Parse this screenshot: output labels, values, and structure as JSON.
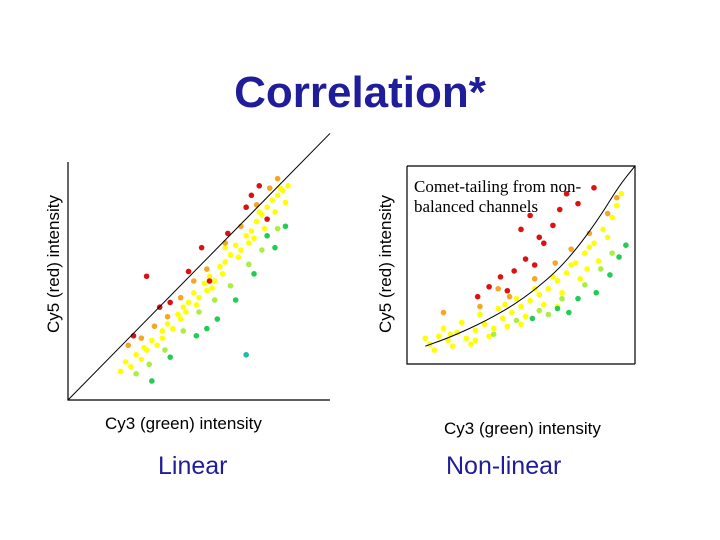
{
  "title": "Correlation*",
  "colors": {
    "title": "#1f1d99",
    "axis": "#000000"
  },
  "chart_data": [
    {
      "type": "scatter",
      "panel": "left",
      "caption": "Linear",
      "xlabel": "Cy3 (green) intensity",
      "ylabel": "Cy5 (red) intensity",
      "xlim": [
        0,
        10
      ],
      "ylim": [
        0,
        10
      ],
      "fit": {
        "kind": "linear",
        "points": [
          [
            0,
            0
          ],
          [
            10,
            11.2
          ]
        ]
      },
      "series": [
        {
          "name": "yellow",
          "color": "#ffff00",
          "points": [
            [
              2.0,
              1.2
            ],
            [
              2.2,
              1.6
            ],
            [
              2.4,
              1.4
            ],
            [
              2.6,
              1.9
            ],
            [
              2.8,
              1.7
            ],
            [
              3.0,
              2.1
            ],
            [
              3.2,
              2.5
            ],
            [
              3.4,
              2.3
            ],
            [
              3.6,
              2.9
            ],
            [
              3.8,
              3.2
            ],
            [
              4.0,
              3.0
            ],
            [
              4.2,
              3.6
            ],
            [
              4.4,
              3.9
            ],
            [
              4.6,
              4.1
            ],
            [
              4.8,
              4.5
            ],
            [
              5.0,
              4.3
            ],
            [
              5.2,
              4.9
            ],
            [
              5.4,
              5.2
            ],
            [
              5.6,
              5.0
            ],
            [
              5.8,
              5.6
            ],
            [
              6.0,
              5.8
            ],
            [
              6.2,
              6.1
            ],
            [
              6.4,
              6.5
            ],
            [
              6.6,
              6.3
            ],
            [
              6.8,
              6.9
            ],
            [
              7.0,
              7.1
            ],
            [
              7.2,
              7.5
            ],
            [
              7.4,
              7.8
            ],
            [
              7.6,
              8.1
            ],
            [
              7.8,
              8.4
            ],
            [
              8.0,
              8.6
            ],
            [
              8.2,
              8.8
            ],
            [
              8.4,
              9.0
            ],
            [
              6.5,
              6.0
            ],
            [
              7.1,
              6.8
            ],
            [
              7.5,
              7.2
            ],
            [
              5.5,
              4.7
            ],
            [
              4.9,
              4.0
            ],
            [
              3.6,
              2.6
            ],
            [
              2.9,
              2.2
            ],
            [
              7.9,
              7.9
            ],
            [
              8.3,
              8.3
            ],
            [
              6.9,
              6.6
            ],
            [
              5.9,
              5.3
            ],
            [
              4.3,
              3.4
            ],
            [
              6.0,
              6.4
            ],
            [
              7.3,
              7.9
            ],
            [
              8.1,
              8.9
            ],
            [
              5.3,
              4.6
            ],
            [
              4.5,
              3.7
            ]
          ]
        },
        {
          "name": "orange",
          "color": "#f5a623",
          "points": [
            [
              2.3,
              2.3
            ],
            [
              2.8,
              2.6
            ],
            [
              3.3,
              3.1
            ],
            [
              3.8,
              3.5
            ],
            [
              4.3,
              4.3
            ],
            [
              4.8,
              5.0
            ],
            [
              5.3,
              5.5
            ],
            [
              6.0,
              6.6
            ],
            [
              6.6,
              7.3
            ],
            [
              7.2,
              8.2
            ],
            [
              7.7,
              8.9
            ],
            [
              8.0,
              9.3
            ]
          ]
        },
        {
          "name": "red",
          "color": "#dd1111",
          "points": [
            [
              3.0,
              5.2
            ],
            [
              3.9,
              4.1
            ],
            [
              4.6,
              5.4
            ],
            [
              5.1,
              6.4
            ],
            [
              5.4,
              5.0
            ],
            [
              6.1,
              7.0
            ],
            [
              6.8,
              8.1
            ],
            [
              7.3,
              9.0
            ],
            [
              7.6,
              7.6
            ],
            [
              7.0,
              8.6
            ],
            [
              2.5,
              2.7
            ],
            [
              3.5,
              3.9
            ]
          ]
        },
        {
          "name": "light-green",
          "color": "#aaee44",
          "points": [
            [
              2.6,
              1.1
            ],
            [
              3.1,
              1.5
            ],
            [
              3.7,
              2.1
            ],
            [
              4.4,
              2.9
            ],
            [
              5.0,
              3.7
            ],
            [
              5.6,
              4.2
            ],
            [
              6.2,
              4.8
            ],
            [
              6.9,
              5.7
            ],
            [
              7.4,
              6.3
            ],
            [
              8.0,
              7.2
            ]
          ]
        },
        {
          "name": "green",
          "color": "#22cc55",
          "points": [
            [
              3.2,
              0.8
            ],
            [
              3.9,
              1.8
            ],
            [
              4.9,
              2.7
            ],
            [
              5.7,
              3.4
            ],
            [
              6.4,
              4.2
            ],
            [
              7.1,
              5.3
            ],
            [
              7.9,
              6.4
            ],
            [
              8.3,
              7.3
            ],
            [
              7.6,
              6.9
            ],
            [
              5.3,
              3.0
            ]
          ]
        },
        {
          "name": "cyan",
          "color": "#22b8aa",
          "points": [
            [
              6.8,
              1.9
            ]
          ]
        }
      ]
    },
    {
      "type": "scatter",
      "panel": "right",
      "caption": "Non-linear",
      "xlabel": "Cy3 (green) intensity",
      "ylabel": "Cy5 (red) intensity",
      "xlim": [
        0,
        10
      ],
      "ylim": [
        0,
        10
      ],
      "annotation": "Comet-tailing from non-balanced channels",
      "fit": {
        "kind": "curve",
        "points": [
          [
            0.8,
            0.9
          ],
          [
            2.0,
            1.4
          ],
          [
            3.5,
            2.2
          ],
          [
            5.0,
            3.2
          ],
          [
            6.5,
            4.6
          ],
          [
            7.5,
            5.9
          ],
          [
            8.5,
            7.5
          ],
          [
            9.3,
            9.0
          ],
          [
            10.0,
            10.0
          ]
        ]
      },
      "series": [
        {
          "name": "yellow",
          "color": "#ffff00",
          "points": [
            [
              1.0,
              1.0
            ],
            [
              1.4,
              1.4
            ],
            [
              1.8,
              1.2
            ],
            [
              2.2,
              1.6
            ],
            [
              2.6,
              1.3
            ],
            [
              3.0,
              1.7
            ],
            [
              3.4,
              2.0
            ],
            [
              3.8,
              1.8
            ],
            [
              4.2,
              2.3
            ],
            [
              4.6,
              2.6
            ],
            [
              5.0,
              2.9
            ],
            [
              5.4,
              3.2
            ],
            [
              5.8,
              3.5
            ],
            [
              6.2,
              3.8
            ],
            [
              6.6,
              4.2
            ],
            [
              7.0,
              4.6
            ],
            [
              7.4,
              5.1
            ],
            [
              7.8,
              5.6
            ],
            [
              8.2,
              6.1
            ],
            [
              8.6,
              6.8
            ],
            [
              9.0,
              7.4
            ],
            [
              9.2,
              8.0
            ],
            [
              1.2,
              0.7
            ],
            [
              2.0,
              0.9
            ],
            [
              2.8,
              1.0
            ],
            [
              3.6,
              1.4
            ],
            [
              4.4,
              1.9
            ],
            [
              5.2,
              2.4
            ],
            [
              6.0,
              3.0
            ],
            [
              6.8,
              3.6
            ],
            [
              7.6,
              4.3
            ],
            [
              8.4,
              5.2
            ],
            [
              1.6,
              1.8
            ],
            [
              2.4,
              2.1
            ],
            [
              3.2,
              2.5
            ],
            [
              4.0,
              2.8
            ],
            [
              4.8,
              3.3
            ],
            [
              5.6,
              3.8
            ],
            [
              6.4,
              4.4
            ],
            [
              7.2,
              5.0
            ],
            [
              8.0,
              5.9
            ],
            [
              8.8,
              6.4
            ],
            [
              9.4,
              8.6
            ],
            [
              3.0,
              1.2
            ],
            [
              5.0,
              2.0
            ],
            [
              6.6,
              2.9
            ],
            [
              0.8,
              1.3
            ],
            [
              1.9,
              1.5
            ],
            [
              4.3,
              3.0
            ],
            [
              7.9,
              4.8
            ]
          ]
        },
        {
          "name": "orange",
          "color": "#f5a623",
          "points": [
            [
              1.6,
              2.6
            ],
            [
              3.2,
              2.9
            ],
            [
              4.5,
              3.4
            ],
            [
              5.6,
              4.3
            ],
            [
              6.5,
              5.1
            ],
            [
              7.2,
              5.8
            ],
            [
              8.0,
              6.6
            ],
            [
              8.8,
              7.6
            ],
            [
              9.2,
              8.4
            ],
            [
              4.0,
              3.8
            ]
          ]
        },
        {
          "name": "red",
          "color": "#dd1111",
          "points": [
            [
              3.1,
              3.4
            ],
            [
              3.6,
              3.9
            ],
            [
              4.1,
              4.4
            ],
            [
              4.4,
              3.7
            ],
            [
              4.7,
              4.7
            ],
            [
              5.2,
              5.3
            ],
            [
              5.6,
              5.0
            ],
            [
              6.0,
              6.1
            ],
            [
              6.4,
              7.0
            ],
            [
              7.0,
              8.6
            ],
            [
              5.0,
              6.8
            ],
            [
              5.4,
              7.5
            ],
            [
              6.7,
              7.8
            ],
            [
              7.5,
              8.1
            ],
            [
              8.2,
              8.9
            ],
            [
              5.8,
              6.4
            ]
          ]
        },
        {
          "name": "light-green",
          "color": "#aaee44",
          "points": [
            [
              3.8,
              1.5
            ],
            [
              4.8,
              2.2
            ],
            [
              5.8,
              2.7
            ],
            [
              6.8,
              3.3
            ],
            [
              7.8,
              4.0
            ],
            [
              8.5,
              4.8
            ],
            [
              9.0,
              5.6
            ],
            [
              6.2,
              2.5
            ]
          ]
        },
        {
          "name": "green",
          "color": "#22cc55",
          "points": [
            [
              5.5,
              2.3
            ],
            [
              6.6,
              2.8
            ],
            [
              7.5,
              3.3
            ],
            [
              8.3,
              3.6
            ],
            [
              8.9,
              4.5
            ],
            [
              9.3,
              5.4
            ],
            [
              7.1,
              2.6
            ],
            [
              9.6,
              6.0
            ]
          ]
        }
      ]
    }
  ]
}
